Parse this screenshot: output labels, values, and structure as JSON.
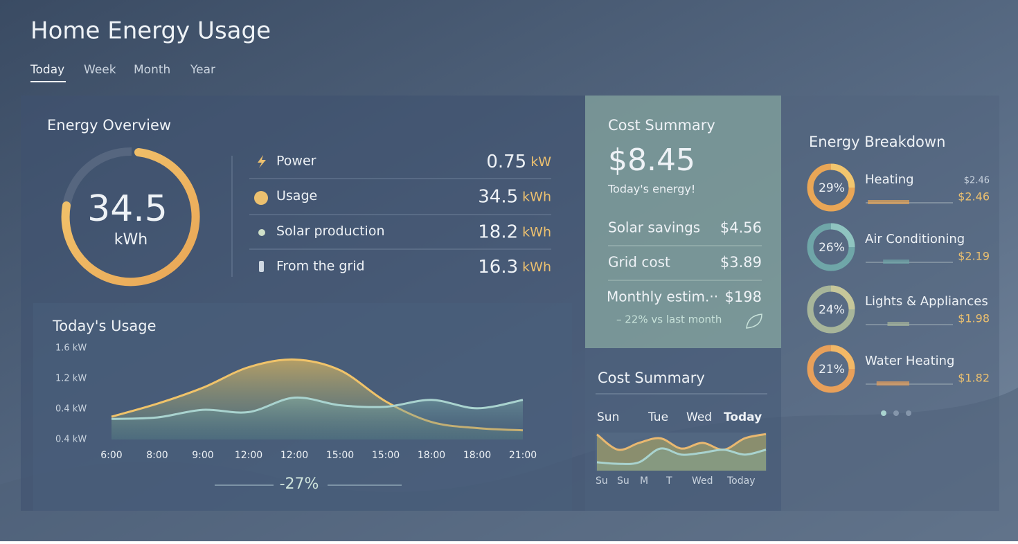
{
  "header": {
    "title": "Home Energy Usage",
    "tabs": [
      "Today",
      "Week",
      "Month",
      "Year"
    ]
  },
  "overview": {
    "title": "Energy Overview",
    "total": 34.5,
    "total_unit": "kWh",
    "stats": [
      {
        "label": "Power",
        "value": 0.75,
        "unit": "kW"
      },
      {
        "label": "Usage",
        "value": 34.5,
        "unit": "kWh"
      },
      {
        "label": "Solar production",
        "value": 18.2,
        "unit": "kWh"
      },
      {
        "label": "From the grid",
        "value": 16.3,
        "unit": "kWh"
      }
    ]
  },
  "usage_chart": {
    "type": "line",
    "title": "Today's Usage",
    "y_labels": [
      "1.6 kW",
      "1.2 kW",
      "0.4 kW",
      "0.4 kW"
    ],
    "ylim": [
      0.4,
      1.6
    ],
    "categories": [
      "6:00",
      "8:00",
      "9:00",
      "12:00",
      "12:00",
      "15:00",
      "15:00",
      "18:00",
      "18:00",
      "21:00"
    ],
    "series": [
      {
        "color": "#f0c36a",
        "values": [
          0.7,
          0.87,
          1.08,
          1.35,
          1.45,
          1.31,
          0.9,
          0.63,
          0.55,
          0.52
        ]
      },
      {
        "color": "#a9d3cf",
        "values": [
          0.67,
          0.69,
          0.79,
          0.76,
          0.95,
          0.85,
          0.83,
          0.92,
          0.81,
          0.92
        ]
      }
    ],
    "change": "-27%"
  },
  "cost_summary": {
    "title": "Cost Summary",
    "total": "$8.45",
    "subtitle": "Today's energy!",
    "rows": [
      {
        "label": "Solar savings",
        "value": "$4.56"
      },
      {
        "label": "Grid cost",
        "value": "$3.89"
      },
      {
        "label": "Monthly estim.··",
        "value": "$198"
      }
    ],
    "note": "– 22% vs last month"
  },
  "cost_chart": {
    "type": "line",
    "title": "Cost Summary",
    "days": [
      "Sun",
      "Tue",
      "Wed",
      "Today"
    ],
    "x_labels": [
      "Su",
      "Su",
      "M",
      "T",
      "Wed",
      "Today"
    ],
    "ylim": [
      0,
      100
    ],
    "series": [
      {
        "color": "#e9b870",
        "values": [
          95,
          55,
          73,
          85,
          58,
          73,
          55,
          85,
          96
        ]
      },
      {
        "color": "#a9d3cf",
        "values": [
          22,
          18,
          22,
          58,
          42,
          47,
          55,
          42,
          55
        ]
      }
    ]
  },
  "breakdown": {
    "title": "Energy Breakdown",
    "items": [
      {
        "percent": "29%",
        "name": "Heating",
        "detail": "$2.46",
        "cost": "$2.46"
      },
      {
        "percent": "26%",
        "name": "Air Conditioning",
        "cost": "$2.19"
      },
      {
        "percent": "24%",
        "name": "Lights & Appliances",
        "cost": "$1.98"
      },
      {
        "percent": "21%",
        "name": "Water Heating",
        "cost": "$1.82"
      }
    ]
  }
}
